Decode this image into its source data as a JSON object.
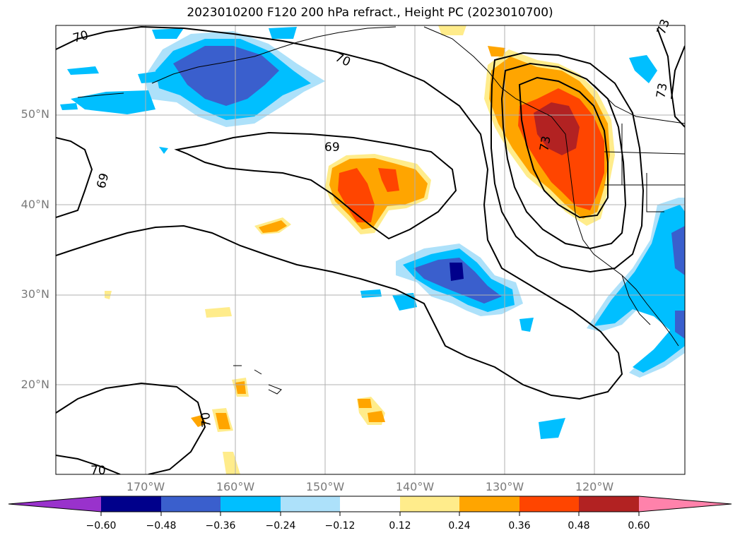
{
  "title": "2023010200 F120 200 hPa refract., Height PC (2023010700)",
  "lat_labels": [
    "50°N",
    "40°N",
    "30°N",
    "20°N"
  ],
  "lon_labels": [
    "170°W",
    "160°W",
    "150°W",
    "140°W",
    "130°W",
    "120°W"
  ],
  "contour_labels": [
    "70",
    "70",
    "69",
    "69",
    "73",
    "73",
    "73",
    "70",
    "70"
  ],
  "colorbar": {
    "colors": [
      "#9932CC",
      "#00008B",
      "#3A5FCD",
      "#00BFFF",
      "#ADE1FA",
      "#FFFFFF",
      "#FFEC8B",
      "#FFA500",
      "#FF4500",
      "#B22222",
      "#FF82AB"
    ],
    "ticks": [
      "−0.60",
      "−0.48",
      "−0.36",
      "−0.24",
      "−0.12",
      "0.12",
      "0.24",
      "0.36",
      "0.48",
      "0.60"
    ]
  },
  "map_colors": {
    "neg_light": "#ADE1FA",
    "neg_mid": "#00BFFF",
    "neg_strong": "#3A5FCD",
    "neg_max": "#00008B",
    "pos_light": "#FFEC8B",
    "pos_mid": "#FFA500",
    "pos_strong": "#FF4500",
    "pos_max": "#B22222"
  }
}
